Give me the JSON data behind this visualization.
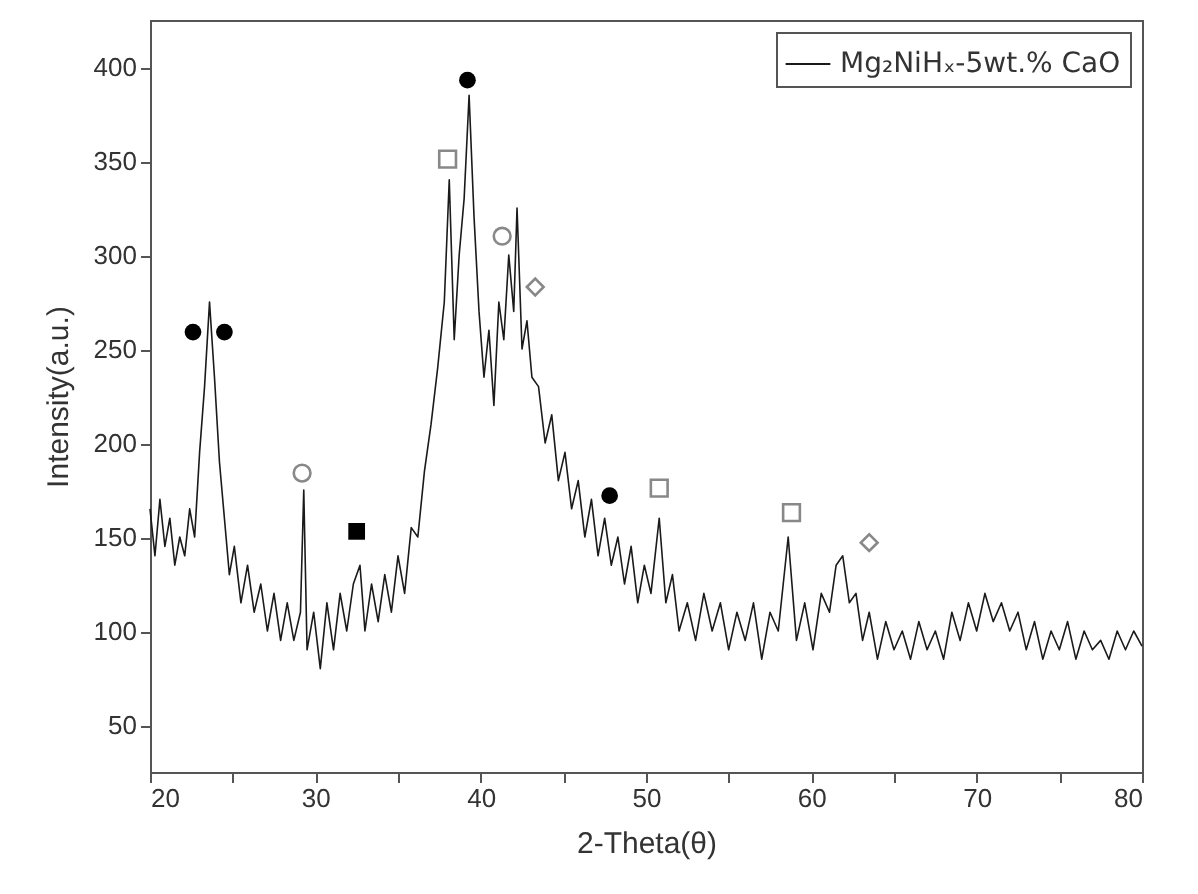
{
  "chart_data": {
    "type": "line",
    "xlabel": "2-Theta(θ)",
    "ylabel": "Intensity(a.u.)",
    "xlim": [
      20,
      80
    ],
    "ylim": [
      25,
      425
    ],
    "xticks": [
      20,
      {
        "value": 25,
        "label": null
      },
      30,
      {
        "value": 35,
        "label": null
      },
      40,
      {
        "value": 45,
        "label": null
      },
      50,
      {
        "value": 55,
        "label": null
      },
      60,
      {
        "value": 65,
        "label": null
      },
      70,
      {
        "value": 75,
        "label": null
      },
      80
    ],
    "yticks": [
      50,
      100,
      150,
      200,
      250,
      300,
      350,
      400
    ],
    "grid": false,
    "legend": "top right",
    "line_style": "solid",
    "series": [
      {
        "name": "Mg₂NiHₓ-5wt.% CaO",
        "color": "#1a1a1a",
        "x": [
          20,
          20.3,
          20.6,
          20.9,
          21.2,
          21.5,
          21.8,
          22.1,
          22.4,
          22.7,
          23,
          23.3,
          23.6,
          23.9,
          24.2,
          24.5,
          24.8,
          25.1,
          25.5,
          25.9,
          26.3,
          26.7,
          27.1,
          27.5,
          27.9,
          28.3,
          28.7,
          29.1,
          29.3,
          29.5,
          29.9,
          30.3,
          30.7,
          31.1,
          31.5,
          31.9,
          32.3,
          32.7,
          33,
          33.4,
          33.8,
          34.2,
          34.6,
          35,
          35.4,
          35.8,
          36.2,
          36.6,
          37,
          37.4,
          37.8,
          38.1,
          38.4,
          38.7,
          39,
          39.3,
          39.6,
          39.9,
          40.2,
          40.5,
          40.8,
          41.1,
          41.4,
          41.7,
          42,
          42.2,
          42.5,
          42.8,
          43.1,
          43.5,
          43.9,
          44.3,
          44.7,
          45.1,
          45.5,
          45.9,
          46.3,
          46.7,
          47.1,
          47.5,
          47.9,
          48.3,
          48.7,
          49.1,
          49.5,
          49.9,
          50.3,
          50.8,
          51.2,
          51.6,
          52,
          52.5,
          53,
          53.5,
          54,
          54.5,
          55,
          55.5,
          56,
          56.5,
          57,
          57.5,
          58,
          58.6,
          59.1,
          59.6,
          60.1,
          60.6,
          61.1,
          61.5,
          61.9,
          62.3,
          62.7,
          63.1,
          63.5,
          64,
          64.5,
          65,
          65.5,
          66,
          66.5,
          67,
          67.5,
          68,
          68.5,
          69,
          69.5,
          70,
          70.5,
          71,
          71.5,
          72,
          72.5,
          73,
          73.5,
          74,
          74.5,
          75,
          75.5,
          76,
          76.5,
          77,
          77.5,
          78,
          78.5,
          79,
          79.5,
          80
        ],
        "values": [
          165,
          140,
          170,
          145,
          160,
          135,
          150,
          140,
          165,
          150,
          195,
          230,
          275,
          235,
          190,
          160,
          130,
          145,
          115,
          135,
          110,
          125,
          100,
          120,
          95,
          115,
          95,
          110,
          175,
          90,
          110,
          80,
          115,
          90,
          120,
          100,
          125,
          135,
          100,
          125,
          105,
          130,
          110,
          140,
          120,
          155,
          150,
          185,
          210,
          240,
          275,
          340,
          255,
          300,
          330,
          385,
          320,
          270,
          235,
          260,
          220,
          275,
          255,
          300,
          270,
          325,
          250,
          265,
          235,
          230,
          200,
          215,
          180,
          195,
          165,
          180,
          150,
          170,
          140,
          160,
          135,
          150,
          125,
          145,
          115,
          135,
          120,
          160,
          115,
          130,
          100,
          115,
          95,
          120,
          100,
          115,
          90,
          110,
          95,
          115,
          85,
          110,
          100,
          150,
          95,
          115,
          90,
          120,
          110,
          135,
          140,
          115,
          120,
          95,
          110,
          85,
          105,
          90,
          100,
          85,
          105,
          90,
          100,
          85,
          110,
          95,
          115,
          100,
          120,
          105,
          115,
          100,
          110,
          90,
          105,
          85,
          100,
          90,
          105,
          85,
          100,
          90,
          95,
          85,
          100,
          90,
          100,
          92
        ]
      },
      {
        "type": "scatter",
        "marker": "circle",
        "color": "#000000",
        "x": [
          22.6,
          24.5,
          39.2,
          47.8
        ],
        "values": [
          259,
          259,
          393,
          172
        ]
      },
      {
        "type": "scatter",
        "marker": "square",
        "color": "#888888",
        "x": [
          38.0,
          50.8,
          58.8
        ],
        "values": [
          351,
          176,
          163
        ]
      },
      {
        "type": "scatter",
        "marker": "circle",
        "color": "#888888",
        "x": [
          41.3,
          29.2
        ],
        "values": [
          310,
          184
        ]
      },
      {
        "type": "scatter",
        "marker": "diamond",
        "color": "#888888",
        "x": [
          43.3,
          63.5
        ],
        "values": [
          283,
          147
        ]
      },
      {
        "type": "scatter",
        "marker": "square",
        "color": "#000000",
        "x": [
          32.5
        ],
        "values": [
          153
        ]
      }
    ]
  }
}
